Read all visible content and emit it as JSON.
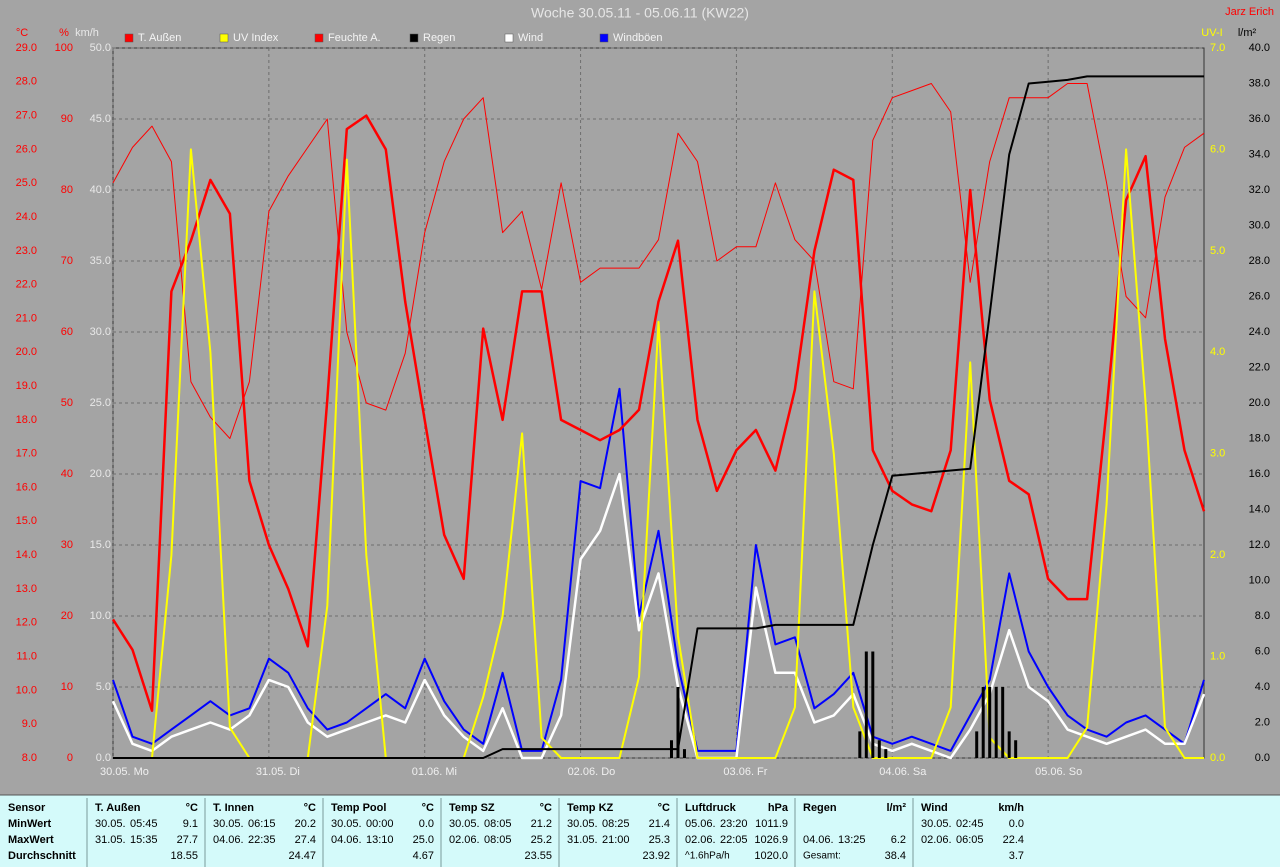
{
  "chart_data": {
    "type": "line",
    "title": "Woche 30.05.11 - 05.06.11 (KW22)",
    "author": "Jarz Erich",
    "x": [
      0,
      3,
      6,
      9,
      12,
      15,
      18,
      21,
      24,
      27,
      30,
      33,
      36,
      39,
      42,
      45,
      48,
      51,
      54,
      57,
      60,
      63,
      66,
      69,
      72,
      75,
      78,
      81,
      84,
      87,
      90,
      93,
      96,
      99,
      102,
      105,
      108,
      111,
      114,
      117,
      120,
      123,
      126,
      129,
      132,
      135,
      138,
      141,
      144,
      147,
      150,
      153,
      156,
      159,
      162,
      165,
      168
    ],
    "xlim": [
      0,
      168
    ],
    "xticks": [
      {
        "value": 0,
        "label": "30.05. Mo"
      },
      {
        "value": 24,
        "label": "31.05. Di"
      },
      {
        "value": 48,
        "label": "01.06. Mi"
      },
      {
        "value": 72,
        "label": "02.06. Do"
      },
      {
        "value": 96,
        "label": "03.06. Fr"
      },
      {
        "value": 120,
        "label": "04.06. Sa"
      },
      {
        "value": 144,
        "label": "05.06. So"
      }
    ],
    "ylabel": "°C",
    "ylim": [
      8,
      29
    ],
    "yticks": [
      {
        "value": 8,
        "label": "8.0"
      },
      {
        "value": 9,
        "label": "9.0"
      },
      {
        "value": 10,
        "label": "10.0"
      },
      {
        "value": 11,
        "label": "11.0"
      },
      {
        "value": 12,
        "label": "12.0"
      },
      {
        "value": 13,
        "label": "13.0"
      },
      {
        "value": 14,
        "label": "14.0"
      },
      {
        "value": 15,
        "label": "15.0"
      },
      {
        "value": 16,
        "label": "16.0"
      },
      {
        "value": 17,
        "label": "17.0"
      },
      {
        "value": 18,
        "label": "18.0"
      },
      {
        "value": 19,
        "label": "19.0"
      },
      {
        "value": 20,
        "label": "20.0"
      },
      {
        "value": 21,
        "label": "21.0"
      },
      {
        "value": 22,
        "label": "22.0"
      },
      {
        "value": 23,
        "label": "23.0"
      },
      {
        "value": 24,
        "label": "24.0"
      },
      {
        "value": 25,
        "label": "25.0"
      },
      {
        "value": 26,
        "label": "26.0"
      },
      {
        "value": 27,
        "label": "27.0"
      },
      {
        "value": 28,
        "label": "28.0"
      },
      {
        "value": 29,
        "label": "29.0"
      }
    ],
    "y2label": "%",
    "y2lim": [
      0,
      100
    ],
    "y2ticks": [
      0,
      10,
      20,
      30,
      40,
      50,
      60,
      70,
      80,
      90,
      100
    ],
    "y3label": "km/h",
    "y3lim": [
      0,
      50
    ],
    "y3ticks": [
      {
        "value": 0,
        "label": "0.0"
      },
      {
        "value": 5,
        "label": "5.0"
      },
      {
        "value": 10,
        "label": "10.0"
      },
      {
        "value": 15,
        "label": "15.0"
      },
      {
        "value": 20,
        "label": "20.0"
      },
      {
        "value": 25,
        "label": "25.0"
      },
      {
        "value": 30,
        "label": "30.0"
      },
      {
        "value": 35,
        "label": "35.0"
      },
      {
        "value": 40,
        "label": "40.0"
      },
      {
        "value": 45,
        "label": "45.0"
      },
      {
        "value": 50,
        "label": "50.0"
      }
    ],
    "y4label": "UV-I",
    "y4lim": [
      0,
      7
    ],
    "y4ticks": [
      {
        "value": 0,
        "label": "0.0"
      },
      {
        "value": 1,
        "label": "1.0"
      },
      {
        "value": 2,
        "label": "2.0"
      },
      {
        "value": 3,
        "label": "3.0"
      },
      {
        "value": 4,
        "label": "4.0"
      },
      {
        "value": 5,
        "label": "5.0"
      },
      {
        "value": 6,
        "label": "6.0"
      },
      {
        "value": 7,
        "label": "7.0"
      }
    ],
    "y5label": "l/m²",
    "y5lim": [
      0,
      40
    ],
    "y5ticks": [
      {
        "value": 0,
        "label": "0.0"
      },
      {
        "value": 2,
        "label": "2.0"
      },
      {
        "value": 4,
        "label": "4.0"
      },
      {
        "value": 6,
        "label": "6.0"
      },
      {
        "value": 8,
        "label": "8.0"
      },
      {
        "value": 10,
        "label": "10.0"
      },
      {
        "value": 12,
        "label": "12.0"
      },
      {
        "value": 14,
        "label": "14.0"
      },
      {
        "value": 16,
        "label": "16.0"
      },
      {
        "value": 18,
        "label": "18.0"
      },
      {
        "value": 20,
        "label": "20.0"
      },
      {
        "value": 22,
        "label": "22.0"
      },
      {
        "value": 24,
        "label": "24.0"
      },
      {
        "value": 26,
        "label": "26.0"
      },
      {
        "value": 28,
        "label": "28.0"
      },
      {
        "value": 30,
        "label": "30.0"
      },
      {
        "value": 32,
        "label": "32.0"
      },
      {
        "value": 34,
        "label": "34.0"
      },
      {
        "value": 36,
        "label": "36.0"
      },
      {
        "value": 38,
        "label": "38.0"
      },
      {
        "value": 40,
        "label": "40.0"
      }
    ],
    "grid": true,
    "series": [
      {
        "name": "T. Außen",
        "color": "#ff0000",
        "axis": "y",
        "width": 2.5,
        "values": [
          12.1,
          11.2,
          9.4,
          21.8,
          23.3,
          25.1,
          24.1,
          16.2,
          14.3,
          13.0,
          11.3,
          18.6,
          26.6,
          27.0,
          26.0,
          21.5,
          18.0,
          14.6,
          13.3,
          20.7,
          18.0,
          21.8,
          21.8,
          18.0,
          17.7,
          17.4,
          17.7,
          18.3,
          21.5,
          23.3,
          18.0,
          15.9,
          17.1,
          17.7,
          16.5,
          18.9,
          23.0,
          25.4,
          25.1,
          17.1,
          15.9,
          15.5,
          15.3,
          17.1,
          24.8,
          18.6,
          16.2,
          15.8,
          13.3,
          12.7,
          12.7,
          18.3,
          24.5,
          25.8,
          20.4,
          17.1,
          15.3
        ]
      },
      {
        "name": "UV Index",
        "color": "#ffff00",
        "axis": "y4",
        "width": 2,
        "values": [
          0,
          0,
          0,
          2.0,
          6.0,
          4.0,
          0.3,
          0,
          0,
          0,
          0,
          1.5,
          5.9,
          2.0,
          0,
          0,
          0,
          0,
          0,
          0.6,
          1.4,
          3.2,
          0.2,
          0,
          0,
          0,
          0,
          0.8,
          4.3,
          1.2,
          0,
          0,
          0,
          0,
          0,
          0.5,
          4.6,
          3.0,
          0.5,
          0,
          0,
          0,
          0,
          0.5,
          3.9,
          0.2,
          0,
          0,
          0,
          0,
          0.3,
          2.5,
          6.0,
          3.5,
          0.3,
          0,
          0
        ]
      },
      {
        "name": "Feuchte A.",
        "color": "#ff0000",
        "axis": "y2",
        "width": 1,
        "values": [
          81,
          86,
          89,
          84,
          53,
          48,
          45,
          53,
          77,
          82,
          86,
          90,
          60,
          50,
          49,
          57,
          74,
          84,
          90,
          93,
          74,
          77,
          66,
          81,
          67,
          69,
          69,
          69,
          73,
          88,
          84,
          70,
          72,
          72,
          81,
          73,
          70,
          53,
          52,
          87,
          93,
          94,
          95,
          91,
          67,
          84,
          93,
          93,
          93,
          95,
          95,
          81,
          65,
          62,
          79,
          86,
          88
        ]
      },
      {
        "name": "Regen",
        "color": "#000000",
        "axis": "y5",
        "width": 2,
        "values": [
          0,
          0,
          0,
          0,
          0,
          0,
          0,
          0,
          0,
          0,
          0,
          0,
          0,
          0,
          0,
          0,
          0,
          0,
          0,
          0,
          0.5,
          0.5,
          0.5,
          0.5,
          0.5,
          0.5,
          0.5,
          0.5,
          0.5,
          0.5,
          7.3,
          7.3,
          7.3,
          7.3,
          7.5,
          7.5,
          7.5,
          7.5,
          7.5,
          12.0,
          15.9,
          16.0,
          16.1,
          16.2,
          16.3,
          25.0,
          34.0,
          38.0,
          38.1,
          38.2,
          38.4,
          38.4,
          38.4,
          38.4,
          38.4,
          38.4,
          38.4
        ],
        "bar_x": [
          86,
          87,
          88,
          115,
          116,
          117,
          118,
          119,
          133,
          134,
          135,
          136,
          137,
          138,
          139
        ],
        "bar_values": [
          1.0,
          4.0,
          0.5,
          1.5,
          6.0,
          6.0,
          1.0,
          0.5,
          1.5,
          4.0,
          4.0,
          4.0,
          4.0,
          1.5,
          1.0
        ]
      },
      {
        "name": "Wind",
        "color": "#ffffff",
        "axis": "y3",
        "width": 2.5,
        "values": [
          4.0,
          1.0,
          0.5,
          1.5,
          2.0,
          2.5,
          2.0,
          3.0,
          5.5,
          5.0,
          2.5,
          1.5,
          2.0,
          2.5,
          3.0,
          2.5,
          5.5,
          3.0,
          1.5,
          0.5,
          3.5,
          0,
          0,
          3.0,
          14.0,
          16.0,
          20.0,
          9.0,
          13.0,
          5.0,
          0,
          0,
          0,
          12.0,
          6.0,
          6.0,
          2.5,
          3.0,
          4.5,
          1.0,
          0.5,
          1.0,
          0.5,
          0,
          2.0,
          4.5,
          9.0,
          5.0,
          4.0,
          2.0,
          1.5,
          1.0,
          1.5,
          2.0,
          1.0,
          1.0,
          4.5
        ]
      },
      {
        "name": "Windböen",
        "color": "#0000ff",
        "axis": "y3",
        "width": 2,
        "values": [
          5.5,
          1.5,
          1.0,
          2.0,
          3.0,
          4.0,
          3.0,
          3.5,
          7.0,
          6.0,
          3.5,
          2.0,
          2.5,
          3.5,
          4.5,
          3.5,
          7.0,
          4.0,
          2.0,
          1.0,
          6.0,
          0.5,
          0.5,
          5.5,
          19.5,
          19.0,
          26.0,
          10.0,
          16.0,
          6.5,
          0.5,
          0.5,
          0.5,
          15.0,
          8.0,
          8.5,
          3.5,
          4.5,
          6.0,
          1.5,
          1.0,
          1.5,
          1.0,
          0.5,
          3.0,
          5.5,
          13.0,
          7.5,
          5.0,
          3.0,
          2.0,
          1.5,
          2.5,
          3.0,
          2.0,
          1.0,
          5.5
        ]
      }
    ]
  },
  "table": {
    "row_labels": [
      "Sensor",
      "MinWert",
      "MaxWert",
      "Durchschnitt"
    ],
    "groups": [
      {
        "name": "T. Außen",
        "unit": "°C",
        "min": [
          "30.05.",
          "05:45",
          "9.1"
        ],
        "max": [
          "31.05.",
          "15:35",
          "27.7"
        ],
        "avg": [
          "18.55"
        ]
      },
      {
        "name": "T. Innen",
        "unit": "°C",
        "min": [
          "30.05.",
          "06:15",
          "20.2"
        ],
        "max": [
          "04.06.",
          "22:35",
          "27.4"
        ],
        "avg": [
          "24.47"
        ]
      },
      {
        "name": "Temp Pool",
        "unit": "°C",
        "min": [
          "30.05.",
          "00:00",
          "0.0"
        ],
        "max": [
          "04.06.",
          "13:10",
          "25.0"
        ],
        "avg": [
          "4.67"
        ]
      },
      {
        "name": "Temp SZ",
        "unit": "°C",
        "min": [
          "30.05.",
          "08:05",
          "21.2"
        ],
        "max": [
          "02.06.",
          "08:05",
          "25.2"
        ],
        "avg": [
          "23.55"
        ]
      },
      {
        "name": "Temp KZ",
        "unit": "°C",
        "min": [
          "30.05.",
          "08:25",
          "21.4"
        ],
        "max": [
          "31.05.",
          "21:00",
          "25.3"
        ],
        "avg": [
          "23.92"
        ]
      },
      {
        "name": "Luftdruck",
        "unit": "hPa",
        "min": [
          "05.06.",
          "23:20",
          "1011.9"
        ],
        "max": [
          "02.06.",
          "22:05",
          "1026.9"
        ],
        "avg": [
          "^1.6hPa/h",
          "1020.0"
        ]
      },
      {
        "name": "Regen",
        "unit": "l/m²",
        "min": [],
        "max": [
          "04.06.",
          "13:25",
          "6.2"
        ],
        "avg": [
          "Gesamt:",
          "38.4"
        ]
      },
      {
        "name": "Wind",
        "unit": "km/h",
        "min": [
          "30.05.",
          "02:45",
          "0.0"
        ],
        "max": [
          "02.06.",
          "06:05",
          "22.4"
        ],
        "avg": [
          "3.7"
        ]
      }
    ]
  }
}
